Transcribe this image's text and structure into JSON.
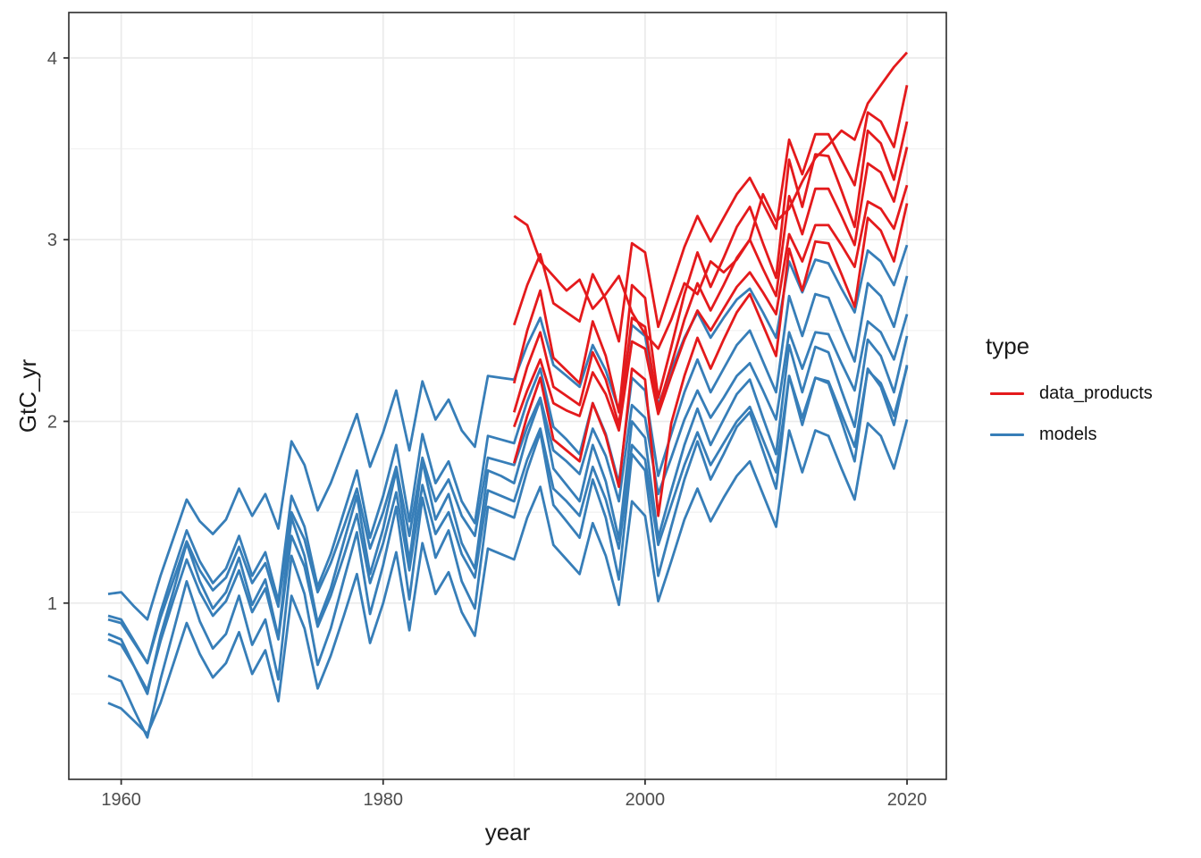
{
  "figure_background": "#ffffff",
  "panel": {
    "background": "#ffffff",
    "border_color": "#2b2b2b",
    "grid_major_color": "#ebebeb",
    "grid_minor_color": "#f1f1f1",
    "tick_color": "#333333",
    "tick_label_color": "#4d4d4d"
  },
  "chart_data": {
    "type": "line",
    "title": "",
    "xlabel": "year",
    "ylabel": "GtC_yr",
    "xlim": [
      1956,
      2023
    ],
    "ylim": [
      0.03,
      4.25
    ],
    "x_ticks": [
      1960,
      1980,
      2000,
      2020
    ],
    "x_minor_ticks": [
      1970,
      1990,
      2010
    ],
    "y_ticks": [
      1,
      2,
      3,
      4
    ],
    "y_minor_ticks": [
      0.5,
      1.5,
      2.5,
      3.5
    ],
    "grid": true,
    "legend": {
      "title": "type",
      "position": "right",
      "entries": [
        {
          "label": "data_products",
          "color": "#e41a1c"
        },
        {
          "label": "models",
          "color": "#377eb8"
        }
      ]
    },
    "years_models": [
      1959,
      1960,
      1961,
      1962,
      1963,
      1964,
      1965,
      1966,
      1967,
      1968,
      1969,
      1970,
      1971,
      1972,
      1973,
      1974,
      1975,
      1976,
      1977,
      1978,
      1979,
      1980,
      1981,
      1982,
      1983,
      1984,
      1985,
      1986,
      1987,
      1988,
      1989,
      1990,
      1991,
      1992,
      1993,
      1994,
      1995,
      1996,
      1997,
      1998,
      1999,
      2000,
      2001,
      2002,
      2003,
      2004,
      2005,
      2006,
      2007,
      2008,
      2009,
      2010,
      2011,
      2012,
      2013,
      2014,
      2015,
      2016,
      2017,
      2018,
      2019,
      2020
    ],
    "years_data_products": [
      1990,
      1991,
      1992,
      1993,
      1994,
      1995,
      1996,
      1997,
      1998,
      1999,
      2000,
      2001,
      2002,
      2003,
      2004,
      2005,
      2006,
      2007,
      2008,
      2009,
      2010,
      2011,
      2012,
      2013,
      2014,
      2015,
      2016,
      2017,
      2018,
      2019,
      2020
    ],
    "series": [
      {
        "name": "model_1",
        "group": "models",
        "color": "#377eb8",
        "start_year": 1959,
        "values": [
          1.05,
          1.06,
          0.98,
          0.91,
          1.15,
          1.36,
          1.57,
          1.45,
          1.38,
          1.46,
          1.63,
          1.48,
          1.6,
          1.41,
          1.89,
          1.76,
          1.51,
          1.66,
          1.85,
          2.04,
          1.75,
          1.94,
          2.17,
          1.84,
          2.22,
          2.01,
          2.12,
          1.95,
          1.86,
          2.25,
          2.24,
          2.23,
          2.42,
          2.57,
          2.31,
          2.25,
          2.19,
          2.42,
          2.28,
          2.06,
          2.53,
          2.47,
          2.09,
          2.28,
          2.46,
          2.6,
          2.46,
          2.57,
          2.67,
          2.73,
          2.6,
          2.46,
          2.88,
          2.71,
          2.89,
          2.87,
          2.73,
          2.6,
          2.94,
          2.88,
          2.75,
          2.97
        ]
      },
      {
        "name": "model_2",
        "group": "models",
        "color": "#377eb8",
        "start_year": 1959,
        "values": [
          0.93,
          0.91,
          0.79,
          0.67,
          0.95,
          1.18,
          1.4,
          1.23,
          1.11,
          1.19,
          1.37,
          1.15,
          1.28,
          1.01,
          1.59,
          1.42,
          1.09,
          1.27,
          1.5,
          1.73,
          1.36,
          1.59,
          1.87,
          1.45,
          1.93,
          1.66,
          1.78,
          1.56,
          1.44,
          1.92,
          1.9,
          1.88,
          2.11,
          2.29,
          1.97,
          1.9,
          1.82,
          2.1,
          1.93,
          1.66,
          2.24,
          2.17,
          1.7,
          1.93,
          2.16,
          2.34,
          2.16,
          2.29,
          2.42,
          2.5,
          2.33,
          2.16,
          2.69,
          2.47,
          2.7,
          2.68,
          2.5,
          2.33,
          2.76,
          2.69,
          2.52,
          2.8
        ]
      },
      {
        "name": "model_3",
        "group": "models",
        "color": "#377eb8",
        "start_year": 1959,
        "values": [
          0.91,
          0.89,
          0.78,
          0.67,
          0.92,
          1.13,
          1.34,
          1.18,
          1.07,
          1.14,
          1.31,
          1.11,
          1.22,
          0.98,
          1.5,
          1.35,
          1.06,
          1.22,
          1.42,
          1.63,
          1.3,
          1.5,
          1.75,
          1.37,
          1.8,
          1.56,
          1.68,
          1.48,
          1.37,
          1.8,
          1.78,
          1.76,
          1.97,
          2.13,
          1.84,
          1.78,
          1.71,
          1.96,
          1.81,
          1.56,
          2.09,
          2.02,
          1.6,
          1.8,
          2.01,
          2.17,
          2.02,
          2.13,
          2.25,
          2.32,
          2.17,
          2.01,
          2.49,
          2.29,
          2.49,
          2.48,
          2.32,
          2.17,
          2.55,
          2.49,
          2.34,
          2.59
        ]
      },
      {
        "name": "model_4",
        "group": "models",
        "color": "#377eb8",
        "start_year": 1959,
        "values": [
          0.83,
          0.8,
          0.65,
          0.5,
          0.82,
          1.07,
          1.33,
          1.12,
          0.97,
          1.06,
          1.25,
          0.99,
          1.13,
          0.81,
          1.47,
          1.26,
          0.89,
          1.08,
          1.34,
          1.59,
          1.16,
          1.41,
          1.73,
          1.23,
          1.78,
          1.46,
          1.6,
          1.33,
          1.19,
          1.73,
          1.7,
          1.66,
          1.92,
          2.12,
          1.74,
          1.65,
          1.56,
          1.87,
          1.67,
          1.35,
          2.0,
          1.91,
          1.36,
          1.62,
          1.87,
          2.07,
          1.87,
          2.01,
          2.15,
          2.23,
          2.02,
          1.82,
          2.42,
          2.16,
          2.41,
          2.38,
          2.17,
          1.97,
          2.45,
          2.36,
          2.16,
          2.47
        ]
      },
      {
        "name": "model_5",
        "group": "models",
        "color": "#377eb8",
        "start_year": 1959,
        "values": [
          0.8,
          0.77,
          0.65,
          0.52,
          0.79,
          1.02,
          1.24,
          1.06,
          0.93,
          1.01,
          1.18,
          0.95,
          1.08,
          0.8,
          1.37,
          1.2,
          0.87,
          1.04,
          1.26,
          1.49,
          1.11,
          1.33,
          1.61,
          1.18,
          1.65,
          1.38,
          1.5,
          1.27,
          1.14,
          1.62,
          1.59,
          1.56,
          1.79,
          1.96,
          1.63,
          1.56,
          1.48,
          1.75,
          1.57,
          1.3,
          1.87,
          1.79,
          1.32,
          1.54,
          1.76,
          1.94,
          1.76,
          1.88,
          2.0,
          2.08,
          1.9,
          1.72,
          2.25,
          2.02,
          2.24,
          2.22,
          2.04,
          1.86,
          2.28,
          2.21,
          2.03,
          2.3
        ]
      },
      {
        "name": "model_6",
        "group": "models",
        "color": "#377eb8",
        "start_year": 1959,
        "values": [
          0.6,
          0.57,
          0.41,
          0.26,
          0.58,
          0.85,
          1.12,
          0.9,
          0.75,
          0.83,
          1.04,
          0.77,
          0.91,
          0.58,
          1.26,
          1.05,
          0.66,
          0.86,
          1.13,
          1.39,
          0.94,
          1.21,
          1.53,
          1.02,
          1.58,
          1.25,
          1.4,
          1.12,
          0.97,
          1.53,
          1.5,
          1.47,
          1.73,
          1.94,
          1.54,
          1.45,
          1.36,
          1.68,
          1.47,
          1.13,
          1.82,
          1.73,
          1.15,
          1.42,
          1.68,
          1.89,
          1.68,
          1.82,
          1.97,
          2.05,
          1.84,
          1.63,
          2.25,
          1.98,
          2.24,
          2.21,
          2.0,
          1.78,
          2.29,
          2.19,
          1.98,
          2.31
        ]
      },
      {
        "name": "model_7",
        "group": "models",
        "color": "#377eb8",
        "start_year": 1959,
        "values": [
          0.45,
          0.42,
          0.35,
          0.28,
          0.45,
          0.67,
          0.89,
          0.72,
          0.59,
          0.67,
          0.84,
          0.61,
          0.74,
          0.46,
          1.04,
          0.86,
          0.53,
          0.71,
          0.93,
          1.16,
          0.78,
          1.0,
          1.28,
          0.85,
          1.33,
          1.05,
          1.17,
          0.95,
          0.82,
          1.3,
          1.27,
          1.24,
          1.47,
          1.64,
          1.32,
          1.24,
          1.16,
          1.44,
          1.26,
          0.99,
          1.56,
          1.48,
          1.01,
          1.23,
          1.46,
          1.63,
          1.45,
          1.58,
          1.7,
          1.78,
          1.6,
          1.42,
          1.95,
          1.72,
          1.95,
          1.92,
          1.74,
          1.57,
          1.99,
          1.92,
          1.74,
          2.01
        ]
      },
      {
        "name": "data_product_1",
        "group": "data_products",
        "color": "#e41a1c",
        "start_year": 1990,
        "values": [
          3.13,
          3.08,
          2.88,
          2.8,
          2.72,
          2.78,
          2.62,
          2.7,
          2.8,
          2.6,
          2.48,
          2.4,
          2.56,
          2.76,
          2.7,
          2.88,
          2.82,
          2.89,
          3.0,
          3.25,
          3.1,
          3.17,
          3.32,
          3.45,
          3.52,
          3.6,
          3.55,
          3.75,
          3.85,
          3.95,
          4.03
        ]
      },
      {
        "name": "data_product_2",
        "group": "data_products",
        "color": "#e41a1c",
        "start_year": 1990,
        "values": [
          2.53,
          2.75,
          2.92,
          2.65,
          2.6,
          2.55,
          2.81,
          2.67,
          2.44,
          2.98,
          2.93,
          2.52,
          2.74,
          2.96,
          3.13,
          2.99,
          3.12,
          3.25,
          3.34,
          3.2,
          3.06,
          3.55,
          3.36,
          3.58,
          3.58,
          3.44,
          3.3,
          3.7,
          3.65,
          3.51,
          3.85
        ]
      },
      {
        "name": "data_product_3",
        "group": "data_products",
        "color": "#e41a1c",
        "start_year": 1990,
        "values": [
          2.21,
          2.5,
          2.72,
          2.35,
          2.28,
          2.21,
          2.55,
          2.36,
          2.05,
          2.75,
          2.68,
          2.13,
          2.41,
          2.7,
          2.93,
          2.74,
          2.9,
          3.07,
          3.18,
          2.98,
          2.79,
          3.44,
          3.18,
          3.47,
          3.46,
          3.27,
          3.07,
          3.6,
          3.53,
          3.33,
          3.65
        ]
      },
      {
        "name": "data_product_4",
        "group": "data_products",
        "color": "#e41a1c",
        "start_year": 1990,
        "values": [
          2.05,
          2.3,
          2.49,
          2.19,
          2.14,
          2.09,
          2.38,
          2.23,
          1.98,
          2.57,
          2.52,
          2.07,
          2.31,
          2.56,
          2.76,
          2.61,
          2.75,
          2.9,
          3.0,
          2.84,
          2.69,
          3.24,
          3.03,
          3.28,
          3.28,
          3.13,
          2.97,
          3.42,
          3.37,
          3.21,
          3.51
        ]
      },
      {
        "name": "data_product_5",
        "group": "data_products",
        "color": "#e41a1c",
        "start_year": 1990,
        "values": [
          1.97,
          2.17,
          2.34,
          2.1,
          2.06,
          2.03,
          2.27,
          2.15,
          1.95,
          2.44,
          2.4,
          2.04,
          2.25,
          2.45,
          2.61,
          2.5,
          2.62,
          2.74,
          2.82,
          2.71,
          2.59,
          3.03,
          2.88,
          3.08,
          3.08,
          2.97,
          2.85,
          3.21,
          3.17,
          3.06,
          3.3
        ]
      },
      {
        "name": "data_product_6",
        "group": "data_products",
        "color": "#e41a1c",
        "start_year": 1990,
        "values": [
          1.77,
          2.03,
          2.24,
          1.9,
          1.84,
          1.78,
          2.1,
          1.92,
          1.64,
          2.29,
          2.23,
          1.48,
          1.99,
          2.25,
          2.46,
          2.29,
          2.45,
          2.6,
          2.7,
          2.53,
          2.36,
          2.95,
          2.72,
          2.99,
          2.98,
          2.81,
          2.63,
          3.12,
          3.05,
          2.88,
          3.2
        ]
      }
    ]
  }
}
